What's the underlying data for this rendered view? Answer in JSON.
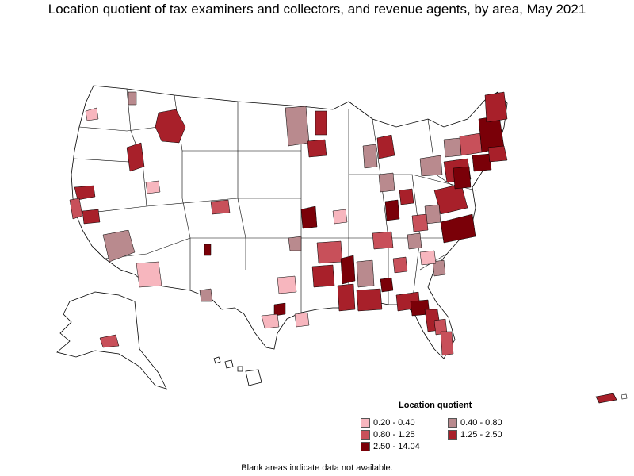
{
  "title": "Location quotient of tax examiners and collectors, and revenue agents, by area, May 2021",
  "legend": {
    "title": "Location quotient",
    "items": [
      {
        "label": "0.20 - 0.40",
        "color": "#f7b6be"
      },
      {
        "label": "0.40 - 0.80",
        "color": "#b98a8e"
      },
      {
        "label": "0.80 - 1.25",
        "color": "#c8505a"
      },
      {
        "label": "1.25 - 2.50",
        "color": "#a8202a"
      },
      {
        "label": "2.50 - 14.04",
        "color": "#7a0008"
      }
    ]
  },
  "note": "Blank areas indicate data not available."
}
